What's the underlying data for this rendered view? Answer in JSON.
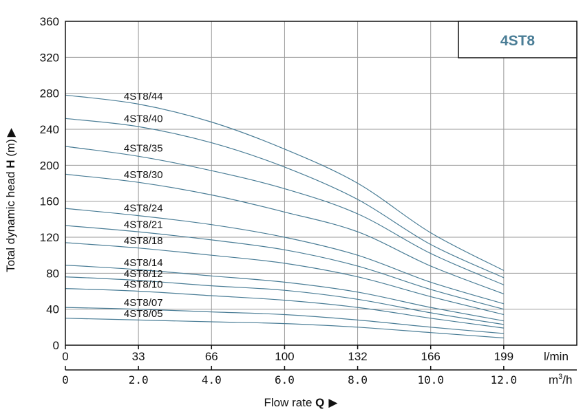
{
  "chart_data": {
    "type": "line",
    "badge": "4ST8",
    "ylabel_prefix": "Total dynamic head ",
    "ylabel_bold": "H",
    "ylabel_suffix": " (m)",
    "ylabel_arrow": "▶",
    "xlabel_prefix": "Flow rate ",
    "xlabel_bold": "Q",
    "xlabel_arrow": "▶",
    "ylim": [
      0,
      360
    ],
    "yticks": [
      "0",
      "40",
      "80",
      "120",
      "160",
      "200",
      "240",
      "280",
      "320",
      "360"
    ],
    "x_lmin_ticks": [
      "0",
      "33",
      "66",
      "100",
      "132",
      "166",
      "199"
    ],
    "x_lmin_unit": "l/min",
    "x_m3h_ticks": [
      "0",
      "2.0",
      "4.0",
      "6.0",
      "8.0",
      "10.0",
      "12.0"
    ],
    "x_m3h_unit_base": "m",
    "x_m3h_unit_sup": "3",
    "x_m3h_unit_tail": "/h",
    "xlim_m3h": [
      0,
      14
    ],
    "grid": true,
    "line_color": "#4a7d96",
    "x": [
      0,
      2,
      4,
      6,
      8,
      10,
      12
    ],
    "series": [
      {
        "name": "4ST8/44",
        "values": [
          278,
          268,
          248,
          218,
          180,
          125,
          83
        ]
      },
      {
        "name": "4ST8/40",
        "values": [
          252,
          243,
          225,
          198,
          162,
          112,
          75
        ]
      },
      {
        "name": "4ST8/35",
        "values": [
          221,
          210,
          194,
          174,
          146,
          102,
          67
        ]
      },
      {
        "name": "4ST8/30",
        "values": [
          190,
          181,
          167,
          148,
          126,
          88,
          57
        ]
      },
      {
        "name": "4ST8/24",
        "values": [
          152,
          144,
          134,
          120,
          100,
          70,
          46
        ]
      },
      {
        "name": "4ST8/21",
        "values": [
          133,
          126,
          117,
          106,
          88,
          62,
          40
        ]
      },
      {
        "name": "4ST8/18",
        "values": [
          114,
          108,
          100,
          91,
          76,
          54,
          34
        ]
      },
      {
        "name": "4ST8/14",
        "values": [
          89,
          84,
          77,
          70,
          59,
          42,
          27
        ]
      },
      {
        "name": "4ST8/12",
        "values": [
          76,
          72,
          66,
          61,
          51,
          36,
          23
        ]
      },
      {
        "name": "4ST8/10",
        "values": [
          63,
          60,
          55,
          50,
          42,
          30,
          19
        ]
      },
      {
        "name": "4ST8/07",
        "values": [
          42,
          40,
          37,
          34,
          28,
          20,
          13
        ]
      },
      {
        "name": "4ST8/05",
        "values": [
          30,
          28,
          26,
          24,
          20,
          14,
          8
        ]
      }
    ]
  }
}
